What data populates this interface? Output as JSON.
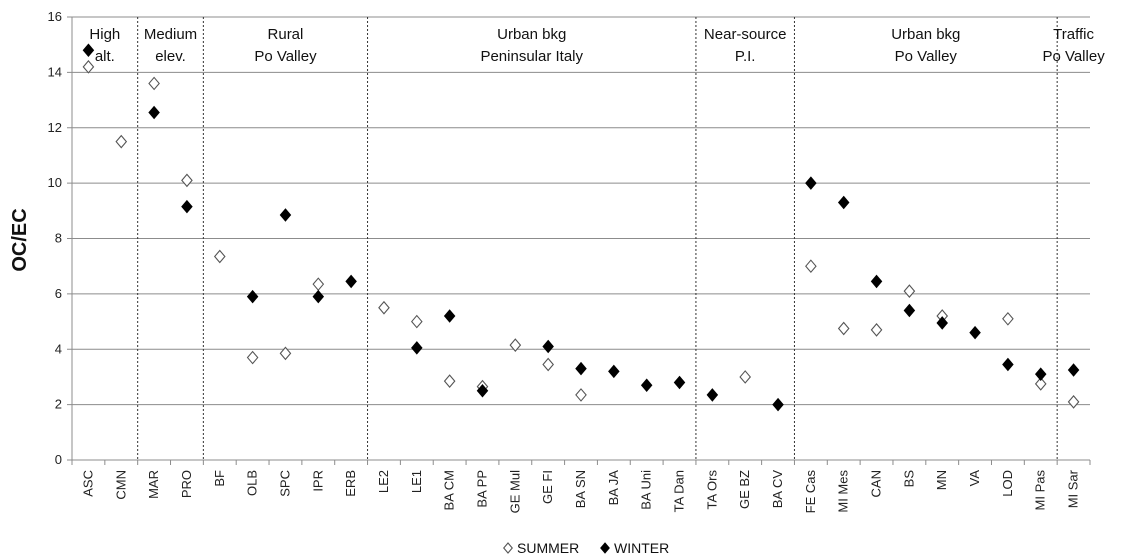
{
  "chart_data": {
    "type": "scatter",
    "ylabel": "OC/EC",
    "ylim": [
      0,
      16
    ],
    "yticks": [
      0,
      2,
      4,
      6,
      8,
      10,
      12,
      14,
      16
    ],
    "grid": "horizontal",
    "legend_placement": "bottom",
    "categories": [
      "ASC",
      "CMN",
      "MAR",
      "PRO",
      "BF",
      "OLB",
      "SPC",
      "IPR",
      "ERB",
      "LE2",
      "LE1",
      "BA CM",
      "BA PP",
      "GE Mul",
      "GE FI",
      "BA SN",
      "BA JA",
      "BA Uni",
      "TA Dan",
      "TA Ors",
      "GE BZ",
      "BA CV",
      "FE Cas",
      "MI Mes",
      "CAN",
      "BS",
      "MN",
      "VA",
      "LOD",
      "MI Pas",
      "MI Sar"
    ],
    "regions": [
      {
        "lines": [
          "High",
          "alt."
        ],
        "start": 0,
        "end": 1
      },
      {
        "lines": [
          "Medium",
          "elev."
        ],
        "start": 2,
        "end": 3
      },
      {
        "lines": [
          "Rural",
          "Po Valley"
        ],
        "start": 4,
        "end": 8
      },
      {
        "lines": [
          "Urban bkg",
          "Peninsular Italy"
        ],
        "start": 9,
        "end": 18
      },
      {
        "lines": [
          "Near-source",
          "P.I."
        ],
        "start": 19,
        "end": 21
      },
      {
        "lines": [
          "Urban bkg",
          "Po Valley"
        ],
        "start": 22,
        "end": 29
      },
      {
        "lines": [
          "Traffic",
          "Po Valley"
        ],
        "start": 30,
        "end": 30
      }
    ],
    "series": [
      {
        "name": "SUMMER",
        "marker": "open-diamond",
        "color": "#555555",
        "values": [
          14.2,
          11.5,
          13.6,
          10.1,
          7.35,
          3.7,
          3.85,
          6.35,
          null,
          5.5,
          5.0,
          2.85,
          2.65,
          4.15,
          3.45,
          2.35,
          null,
          null,
          null,
          null,
          3.0,
          null,
          7.0,
          4.75,
          4.7,
          6.1,
          5.2,
          null,
          5.1,
          2.75,
          2.1
        ]
      },
      {
        "name": "WINTER",
        "marker": "filled-diamond",
        "color": "#000000",
        "values": [
          14.8,
          null,
          12.55,
          9.15,
          null,
          5.9,
          8.85,
          5.9,
          6.45,
          null,
          4.05,
          5.2,
          2.5,
          null,
          4.1,
          3.3,
          3.2,
          2.7,
          2.8,
          2.35,
          null,
          2.0,
          10.0,
          9.3,
          6.45,
          5.4,
          4.95,
          4.6,
          3.45,
          3.1,
          3.25
        ]
      }
    ]
  },
  "legend": {
    "summer_label": "SUMMER",
    "winter_label": "WINTER"
  }
}
